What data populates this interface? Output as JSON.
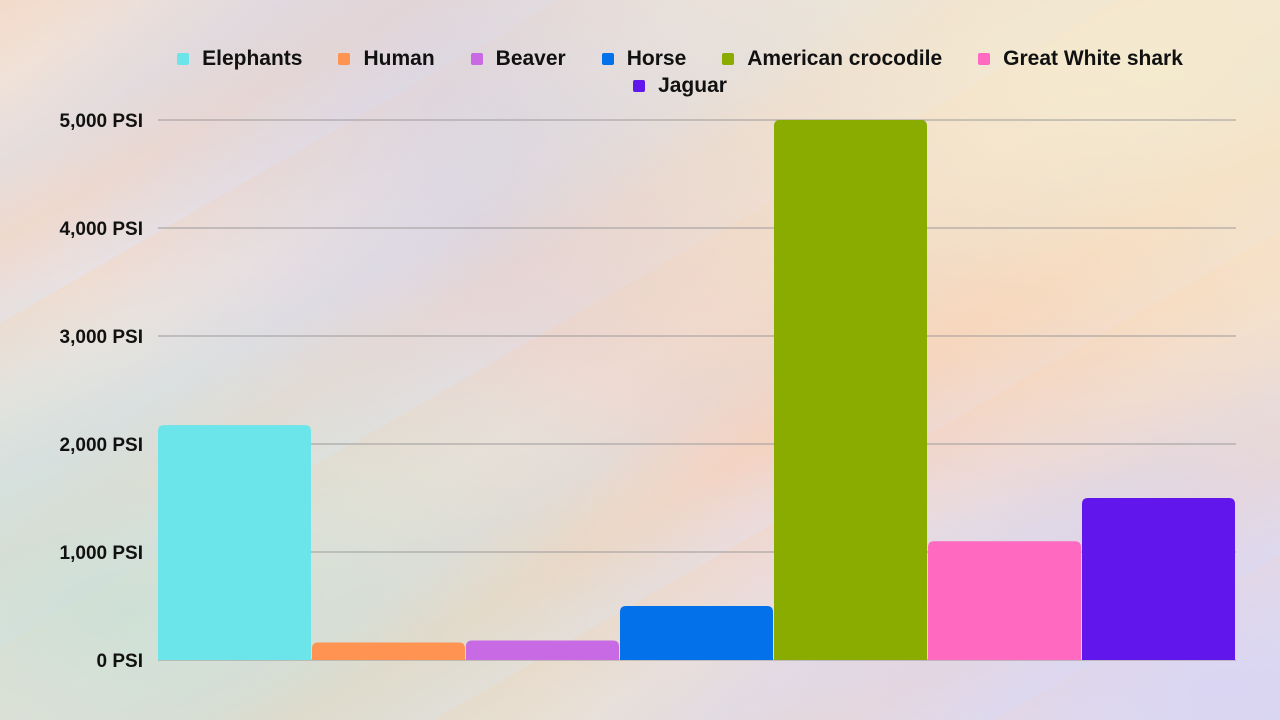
{
  "chart_data": {
    "type": "bar",
    "categories": [
      "Elephants",
      "Human",
      "Beaver",
      "Horse",
      "American crocodile",
      "Great White shark",
      "Jaguar"
    ],
    "values": [
      2175,
      162,
      180,
      500,
      5000,
      1100,
      1500
    ],
    "colors": [
      "#6be5e9",
      "#ff9452",
      "#c96ae5",
      "#0372ea",
      "#8aac00",
      "#ff69c0",
      "#6116eb"
    ],
    "ylim": [
      0,
      5000
    ],
    "yticks": [
      0,
      1000,
      2000,
      3000,
      4000,
      5000
    ],
    "ytick_labels": [
      "0 PSI",
      "1,000 PSI",
      "2,000 PSI",
      "3,000 PSI",
      "4,000 PSI",
      "5,000 PSI"
    ],
    "grid": true,
    "legend_position": "top"
  }
}
